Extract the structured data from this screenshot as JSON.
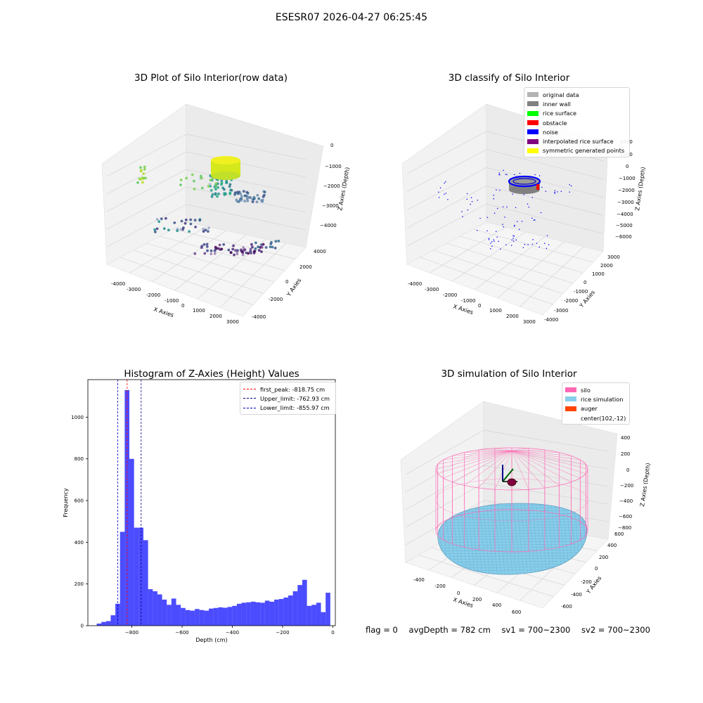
{
  "figure": {
    "suptitle": "ESESR07 2026-04-27 06:25:45"
  },
  "panel_raw": {
    "title": "3D Plot of Silo Interior(row data)",
    "xlabel": "X Axies",
    "ylabel": "Y Axies",
    "zlabel": "Z Axies (Depth)",
    "x_ticks": [
      "-4000",
      "-3000",
      "-2000",
      "-1000",
      "0",
      "1000",
      "2000",
      "3000"
    ],
    "y_ticks": [
      "-4000",
      "-2000",
      "0",
      "2000",
      "4000"
    ],
    "z_ticks": [
      "0",
      "−1000",
      "−2000",
      "−3000",
      "−4000"
    ]
  },
  "panel_classify": {
    "title": "3D classify of Silo Interior",
    "xlabel": "X Axies",
    "ylabel": "Y Axies",
    "zlabel": "Z Axies (Depth)",
    "x_ticks": [
      "-4000",
      "-3000",
      "-2000",
      "-1000",
      "0",
      "1000",
      "2000",
      "3000"
    ],
    "y_ticks": [
      "-4000",
      "-3000",
      "-2000",
      "-1000",
      "0",
      "1000",
      "2000",
      "3000"
    ],
    "z_ticks": [
      "2000",
      "1000",
      "0",
      "−1000",
      "−2000",
      "−3000",
      "−4000",
      "−5000",
      "−6000"
    ],
    "legend": [
      {
        "label": "original data",
        "color": "#b3b3b3"
      },
      {
        "label": "inner wall",
        "color": "#808080"
      },
      {
        "label": "rice surface",
        "color": "#00ff00"
      },
      {
        "label": "obstacle",
        "color": "#ff0000"
      },
      {
        "label": "noise",
        "color": "#0000ff"
      },
      {
        "label": "interpolated rice surface",
        "color": "#800080"
      },
      {
        "label": "symmetric generated points",
        "color": "#ffff00"
      }
    ]
  },
  "panel_sim": {
    "title": "3D simulation of Silo Interior",
    "xlabel": "X Axies",
    "ylabel": "Y Axies",
    "zlabel": "Z Axies (Depth)",
    "x_ticks": [
      "-400",
      "-200",
      "0",
      "200",
      "400",
      "600"
    ],
    "y_ticks": [
      "-600",
      "-400",
      "-200",
      "0",
      "200",
      "400",
      "600"
    ],
    "z_ticks": [
      "400",
      "200",
      "0",
      "−200",
      "−400",
      "−600",
      "−800"
    ],
    "legend": [
      {
        "label": "silo",
        "color": "#ff69b4",
        "swatch": true
      },
      {
        "label": "rice simulation",
        "color": "#87ceeb",
        "swatch": true
      },
      {
        "label": "auger",
        "color": "#ff4500",
        "swatch": true
      },
      {
        "label": "center(102,-12)",
        "color": "",
        "swatch": false
      }
    ]
  },
  "chart_data": {
    "type": "bar",
    "title": "Histogram of Z-Axies (Height) Values",
    "xlabel": "Depth (cm)",
    "ylabel": "Frequency",
    "xlim": [
      -975,
      10
    ],
    "ylim": [
      0,
      1180
    ],
    "x_ticks": [
      -800,
      -600,
      -400,
      -200,
      0
    ],
    "y_ticks": [
      0,
      200,
      400,
      600,
      800,
      1000
    ],
    "bin_start": -940,
    "bin_width": 18.6,
    "values": [
      10,
      18,
      22,
      50,
      105,
      450,
      1130,
      800,
      470,
      470,
      410,
      175,
      165,
      150,
      125,
      100,
      130,
      100,
      85,
      75,
      72,
      80,
      75,
      72,
      82,
      85,
      88,
      86,
      90,
      95,
      105,
      110,
      112,
      115,
      112,
      110,
      120,
      115,
      125,
      128,
      135,
      145,
      165,
      195,
      220,
      95,
      100,
      110,
      65,
      158
    ],
    "bar_color": "#0000ff",
    "vlines": [
      {
        "x": -818.75,
        "label": "first_peak: -818.75 cm",
        "color": "#ff0000"
      },
      {
        "x": -762.93,
        "label": "Upper_limit: -762.93 cm",
        "color": "#00008b"
      },
      {
        "x": -855.97,
        "label": "Lower_limit: -855.97 cm",
        "color": "#0000cd"
      }
    ]
  },
  "footer": {
    "flag": "flag = 0",
    "avg": "avgDepth = 782 cm",
    "sv1": "sv1 = 700~2300",
    "sv2": "sv2 = 700~2300"
  }
}
